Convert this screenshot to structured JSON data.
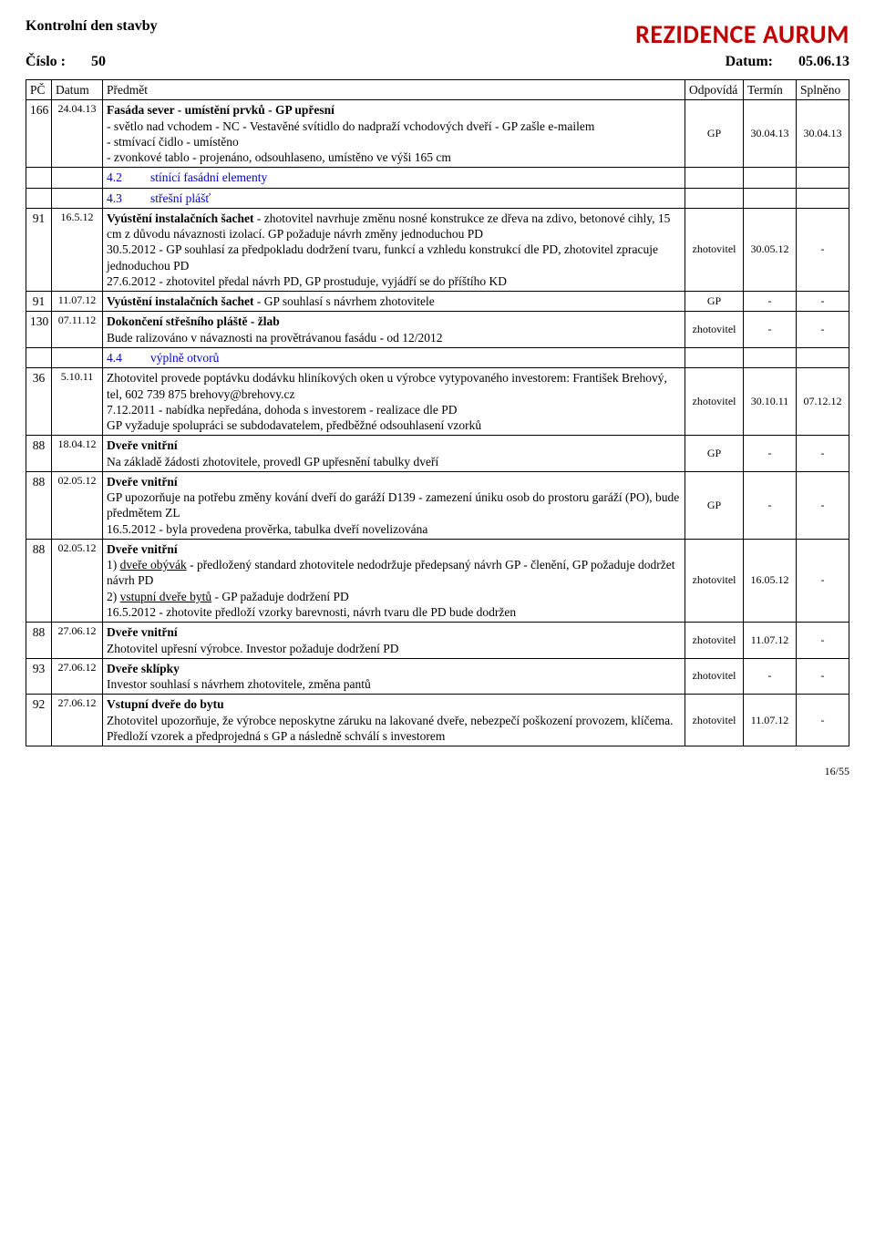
{
  "header": {
    "left_title": "Kontrolní den stavby",
    "right_title": "REZIDENCE AURUM",
    "number_label": "Číslo :",
    "number_value": "50",
    "date_label": "Datum:",
    "date_value": "05.06.13"
  },
  "columns": {
    "pc": "PČ",
    "datum": "Datum",
    "predmet": "Předmět",
    "odpovida": "Odpovídá",
    "termin": "Termín",
    "splneno": "Splněno"
  },
  "rows": [
    {
      "pc": "166",
      "datum": "24.04.13",
      "body": {
        "title": "Fasáda sever - umístění prvků - GP upřesní",
        "lines": [
          "- světlo nad vchodem - NC - Vestavěné svítidlo do nadpraží vchodových dveří - GP zašle e-mailem",
          "- stmívací čidlo - umístěno",
          "- zvonkové tablo - projenáno, odsouhlaseno, umístěno ve výši 165 cm"
        ]
      },
      "odpovida": "GP",
      "termin": "30.04.13",
      "splneno": "30.04.13"
    },
    {
      "section_rows": [
        {
          "num": "4.2",
          "label": "stínící fasádní elementy"
        },
        {
          "num": "4.3",
          "label": "střešní plášť"
        }
      ],
      "pc": "91",
      "datum": "16.5.12",
      "body_html": "<span class='bold'>Vyústění instalačních šachet</span> - zhotovitel navrhuje změnu nosné konstrukce ze dřeva na zdivo, betonové cihly, 15 cm z důvodu návaznosti izolací. GP požaduje návrh změny jednoduchou PD<br>30.5.2012 - GP souhlasí za předpokladu dodržení tvaru, funkcí a vzhledu konstrukcí dle PD, zhotovitel zpracuje jednoduchou PD<br>27.6.2012 - zhotovitel předal návrh PD, GP prostuduje, vyjádří se do příštího KD",
      "odpovida": "zhotovitel",
      "termin": "30.05.12",
      "splneno": "-"
    },
    {
      "pc": "91",
      "datum": "11.07.12",
      "body_html": "<span class='bold'>Vyústění instalačních šachet</span> - GP souhlasí s návrhem zhotovitele",
      "odpovida": "GP",
      "termin": "-",
      "splneno": "-"
    },
    {
      "pc": "130",
      "datum": "07.11.12",
      "body_html": "<span class='bold'>Dokončení střešního pláště - žlab</span><br>Bude ralizováno v návaznosti na provětrávanou fasádu - od 12/2012",
      "odpovida": "zhotovitel",
      "termin": "-",
      "splneno": "-"
    },
    {
      "section_rows": [
        {
          "num": "4.4",
          "label": "výplně otvorů"
        }
      ],
      "pc": "36",
      "datum": "5.10.11",
      "body_html": "Zhotovitel provede poptávku dodávku hliníkových oken u výrobce vytypovaného investorem: František Brehový, tel, 602 739 875 brehovy@brehovy.cz<br>7.12.2011 - nabídka nepředána, dohoda s investorem - realizace dle PD<br>GP vyžaduje spolupráci se subdodavatelem, předběžné odsouhlasení vzorků",
      "odpovida": "zhotovitel",
      "termin": "30.10.11",
      "splneno": "07.12.12"
    },
    {
      "pc": "88",
      "datum": "18.04.12",
      "body_html": "<span class='bold'>Dveře vnitřní</span><br>Na základě žádosti zhotovitele, provedl GP upřesnění tabulky dveří",
      "odpovida": "GP",
      "termin": "-",
      "splneno": "-"
    },
    {
      "pc": "88",
      "datum": "02.05.12",
      "body_html": "<span class='bold'>Dveře vnitřní</span><br>GP upozorňuje na potřebu změny kování dveří do garáží D139 - zamezení úniku osob do prostoru garáží (PO), bude předmětem ZL<br>16.5.2012 - byla provedena prověrka, tabulka dveří novelizována",
      "odpovida": "GP",
      "termin": "-",
      "splneno": "-"
    },
    {
      "pc": "88",
      "datum": "02.05.12",
      "body_html": "<span class='bold'>Dveře vnitřní</span><br>1) <span class='u'>dveře obývák</span> - předložený standard zhotovitele nedodržuje předepsaný návrh GP - členění, GP požaduje dodržet návrh PD<br>2) <span class='u'>vstupní dveře bytů</span> - GP pažaduje dodržení PD<br>16.5.2012 - zhotovite předloží vzorky barevnosti, návrh tvaru dle PD bude dodržen",
      "odpovida": "zhotovitel",
      "termin": "16.05.12",
      "splneno": "-"
    },
    {
      "pc": "88",
      "datum": "27.06.12",
      "body_html": "<span class='bold'>Dveře vnitřní</span><br>Zhotovitel upřesní výrobce. Investor požaduje dodržení PD",
      "odpovida": "zhotovitel",
      "termin": "11.07.12",
      "splneno": "-"
    },
    {
      "pc": "93",
      "datum": "27.06.12",
      "body_html": "<span class='bold'>Dveře sklípky</span><br>Investor souhlasí s návrhem zhotovitele, změna pantů",
      "odpovida": "zhotovitel",
      "termin": "-",
      "splneno": "-"
    },
    {
      "pc": "92",
      "datum": "27.06.12",
      "body_html": "<span class='bold'>Vstupní dveře do bytu</span><br>Zhotovitel upozorňuje, že výrobce neposkytne záruku na lakované dveře, nebezpečí poškození provozem, klíčema. Předloží vzorek a předprojedná s GP a následně schválí s investorem",
      "odpovida": "zhotovitel",
      "termin": "11.07.12",
      "splneno": "-"
    }
  ],
  "footer": {
    "page": "16/55"
  },
  "style": {
    "accent_color": "#c00000",
    "section_color": "#0000cc",
    "border_color": "#000000",
    "background": "#ffffff"
  }
}
